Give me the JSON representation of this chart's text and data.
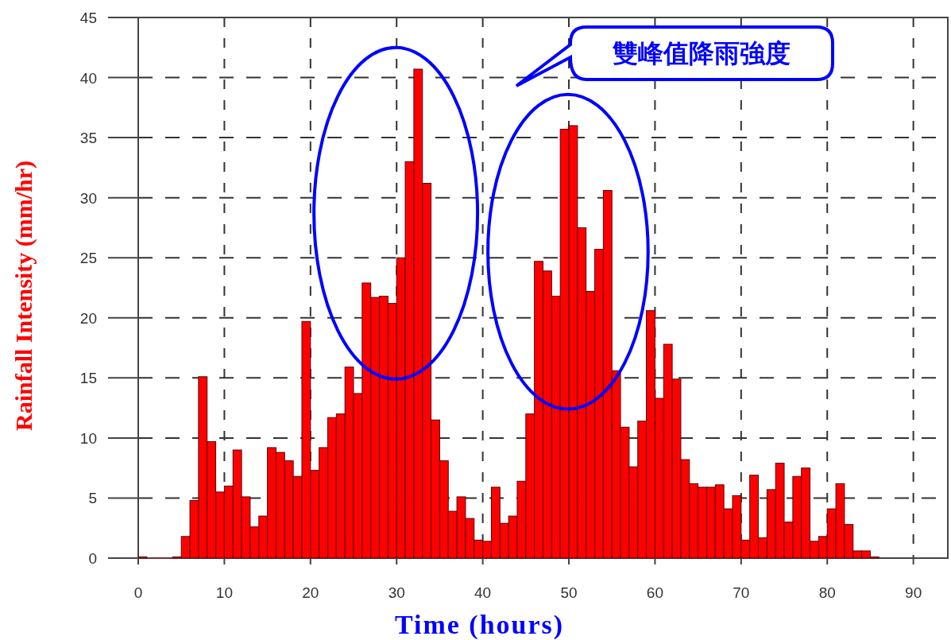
{
  "chart_data": {
    "type": "histogram",
    "xlabel": "Time (hours)",
    "ylabel": "Rainfall Intensity (mm/hr)",
    "annotations": [
      "雙峰值降雨強度"
    ],
    "bins": [
      0,
      1,
      2,
      3,
      4,
      5,
      6,
      7,
      8,
      9,
      10,
      11,
      12,
      13,
      14,
      15,
      16,
      17,
      18,
      19,
      20,
      21,
      22,
      23,
      24,
      25,
      26,
      27,
      28,
      29,
      30,
      31,
      32,
      33,
      34,
      35,
      36,
      37,
      38,
      39,
      40,
      41,
      42,
      43,
      44,
      45,
      46,
      47,
      48,
      49,
      50,
      51,
      52,
      53,
      54,
      55,
      56,
      57,
      58,
      59,
      60,
      61,
      62,
      63,
      64,
      65,
      66,
      67,
      68,
      69,
      70,
      71,
      72,
      73,
      74,
      75,
      76,
      77,
      78,
      79,
      80,
      81,
      82,
      83,
      84,
      85,
      86
    ],
    "values": [
      0.1,
      0,
      0,
      0,
      0.1,
      1.8,
      4.8,
      15.1,
      9.7,
      5.5,
      6.0,
      9.0,
      5.1,
      2.6,
      3.5,
      9.2,
      8.8,
      8.1,
      6.8,
      19.7,
      7.3,
      9.2,
      11.7,
      12.0,
      15.9,
      13.7,
      22.9,
      21.7,
      21.8,
      21.2,
      25.0,
      33.0,
      40.7,
      31.2,
      11.5,
      8.1,
      3.9,
      5.1,
      3.3,
      1.5,
      1.4,
      5.9,
      2.9,
      3.5,
      6.4,
      12.0,
      24.7,
      23.9,
      21.8,
      35.7,
      36.0,
      27.5,
      22.2,
      25.7,
      30.6,
      15.6,
      10.9,
      7.6,
      11.4,
      20.6,
      13.3,
      17.8,
      14.9,
      8.2,
      6.2,
      5.9,
      5.9,
      6.1,
      4.1,
      5.2,
      1.5,
      6.9,
      1.7,
      5.7,
      7.9,
      3.0,
      6.8,
      7.5,
      1.4,
      1.8,
      4.1,
      6.2,
      2.8,
      0.6,
      0.6,
      0.1
    ],
    "color": "#ff0000",
    "xlim": [
      0,
      94
    ],
    "ylim": [
      0,
      45
    ],
    "xticks": [
      0,
      10,
      20,
      30,
      40,
      50,
      60,
      70,
      80,
      90
    ],
    "yticks": [
      0,
      5,
      10,
      15,
      20,
      25,
      30,
      35,
      40,
      45
    ],
    "grid": true
  }
}
